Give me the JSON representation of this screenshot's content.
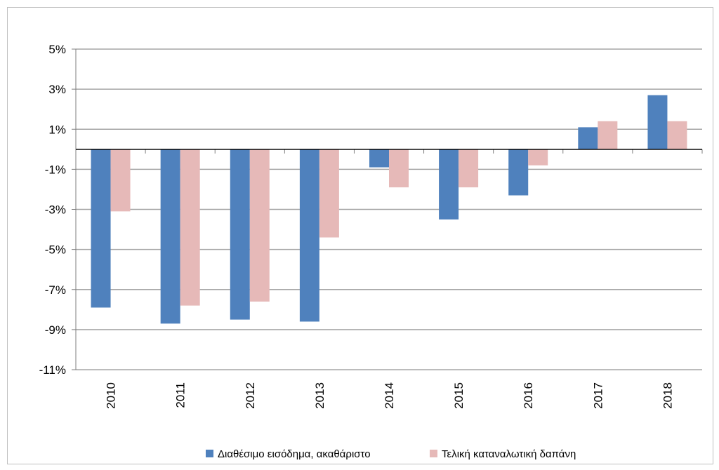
{
  "chart_data": {
    "type": "bar",
    "title": "",
    "xlabel": "",
    "ylabel": "",
    "categories": [
      "2010",
      "2011",
      "2012",
      "2013",
      "2014",
      "2015",
      "2016",
      "2017",
      "2018"
    ],
    "series": [
      {
        "name": "Διαθέσιμο εισόδημα, ακαθάριστο",
        "color": "#4f81bd",
        "values": [
          -7.9,
          -8.7,
          -8.5,
          -8.6,
          -0.9,
          -3.5,
          -2.3,
          1.1,
          2.7
        ]
      },
      {
        "name": "Τελική καταναλωτική δαπάνη",
        "color": "#e6b9b8",
        "values": [
          -3.1,
          -7.8,
          -7.6,
          -4.4,
          -1.9,
          -1.9,
          -0.8,
          1.4,
          1.4
        ]
      }
    ],
    "yticks": [
      "5%",
      "3%",
      "1%",
      "-1%",
      "-3%",
      "-5%",
      "-7%",
      "-9%",
      "-11%"
    ],
    "ytick_values": [
      5,
      3,
      1,
      -1,
      -3,
      -5,
      -7,
      -9,
      -11
    ],
    "ylim": [
      -11,
      5
    ],
    "grid": true,
    "legend_position": "bottom"
  }
}
